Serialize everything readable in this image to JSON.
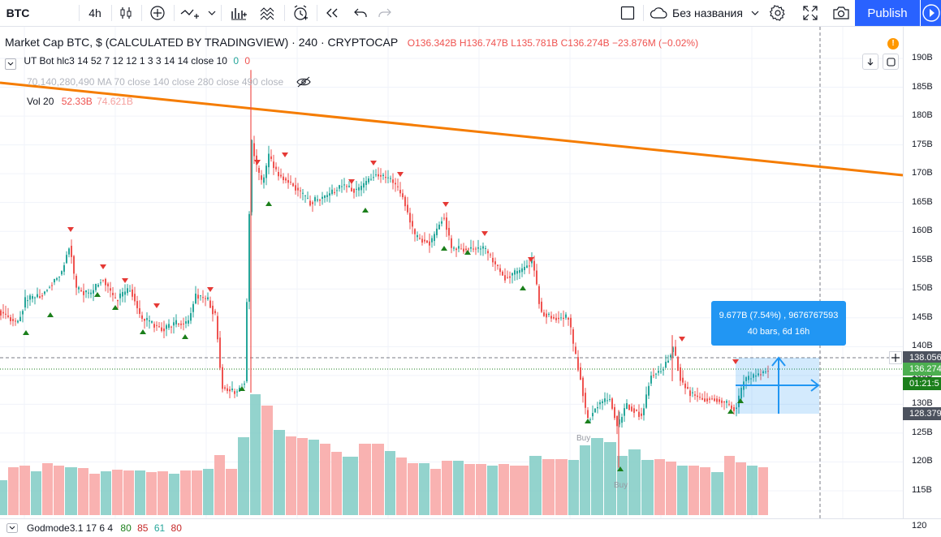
{
  "toolbar": {
    "symbol": "BTC",
    "interval": "4h",
    "layout_name": "Без названия",
    "publish_label": "Publish"
  },
  "legend": {
    "main_title": "Market Cap BTC, $ (CALCULATED BY TRADINGVIEW) · 240 · CRYPTOCAP",
    "ohlc": "O136.342B  H136.747B  L135.781B  C136.274B  −23.876M (−0.02%)",
    "ut_bot_name": "UT Bot hlc3 14 52 7 12 12 1 3 3 14 14 close 10",
    "ut_bot_v1": "0",
    "ut_bot_v2": "0",
    "ma_label": "70,140,280,490 MA 70 close 140 close 280 close 490 close",
    "vol_name": "Vol 20",
    "vol_v1": "52.33B",
    "vol_v2": "74.621B",
    "bottom_indicator": "Godmode3.1 17 6 4",
    "bottom_v1": "80",
    "bottom_v2": "85",
    "bottom_v3": "61",
    "bottom_v4": "80"
  },
  "price_axis": {
    "labels": [
      "190B",
      "185B",
      "180B",
      "175B",
      "170B",
      "165B",
      "160B",
      "155B",
      "150B",
      "145B",
      "140B",
      "135B",
      "130B",
      "125B",
      "120B",
      "115B"
    ],
    "bottom_label": "120",
    "current_price_tag": "136.274",
    "countdown_tag": "01:21:5",
    "crosshair_tag": "138.056",
    "low_tag": "128.379"
  },
  "measure_tooltip": {
    "line1": "9.677B (7.54%) , 9676767593",
    "line2": "40 bars, 6d 16h"
  },
  "signals": {
    "buy_label": "Buy"
  },
  "colors": {
    "up": "#26a69a",
    "down": "#ef5350",
    "trendline": "#f57c00",
    "accent": "#2962ff"
  }
}
